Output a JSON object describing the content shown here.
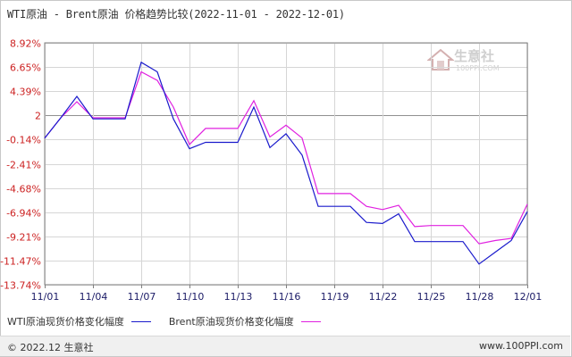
{
  "title": "WTI原油 - Brent原油 价格趋势比较(2022-11-01 - 2022-12-01)",
  "watermark": {
    "cn": "生意社",
    "en": "100PPI.COM"
  },
  "footer": {
    "left": "© 2022.12 生意社",
    "right": "www.100PPI.com"
  },
  "colors": {
    "wti": "#1a1acc",
    "brent": "#e020e0",
    "grid": "#d6d6d6",
    "axis": "#808080",
    "label": "#cc2222"
  },
  "chart_data": {
    "type": "line",
    "title": "WTI原油 - Brent原油 价格趋势比较(2022-11-01 - 2022-12-01)",
    "y_ticks": [
      "8.92%",
      "6.65%",
      "4.39%",
      "2",
      "-0.14%",
      "-2.41%",
      "-4.68%",
      "-6.94%",
      "-9.21%",
      "-11.47%",
      "-13.74%"
    ],
    "y_tick_values": [
      8.92,
      6.65,
      4.39,
      2.12,
      -0.14,
      -2.41,
      -4.68,
      -6.94,
      -9.21,
      -11.47,
      -13.74
    ],
    "ylim": [
      -13.74,
      8.92
    ],
    "x_ticks": [
      "11/01",
      "11/04",
      "11/07",
      "11/10",
      "11/13",
      "11/16",
      "11/19",
      "11/22",
      "11/25",
      "11/28",
      "12/01"
    ],
    "x": [
      "11/01",
      "11/02",
      "11/03",
      "11/04",
      "11/05",
      "11/06",
      "11/07",
      "11/08",
      "11/09",
      "11/10",
      "11/11",
      "11/12",
      "11/13",
      "11/14",
      "11/15",
      "11/16",
      "11/17",
      "11/18",
      "11/19",
      "11/20",
      "11/21",
      "11/22",
      "11/23",
      "11/24",
      "11/25",
      "11/26",
      "11/27",
      "11/28",
      "11/29",
      "11/30",
      "12/01"
    ],
    "grid": true,
    "legend_position": "bottom-left",
    "series": [
      {
        "name": "WTI原油现货价格变化幅度",
        "color": "#1a1acc",
        "values": [
          0.0,
          1.9,
          3.9,
          1.8,
          1.8,
          1.8,
          7.1,
          6.2,
          1.8,
          -1.0,
          -0.4,
          -0.4,
          -0.4,
          2.9,
          -0.9,
          0.4,
          -1.6,
          -6.4,
          -6.4,
          -6.4,
          -7.9,
          -8.0,
          -7.1,
          -9.7,
          -9.7,
          -9.7,
          -9.7,
          -11.8,
          -10.7,
          -9.6,
          -6.9
        ]
      },
      {
        "name": "Brent原油现货价格变化幅度",
        "color": "#e020e0",
        "values": [
          0.0,
          1.9,
          3.4,
          1.9,
          1.9,
          1.9,
          6.2,
          5.4,
          2.9,
          -0.6,
          0.9,
          0.9,
          0.9,
          3.5,
          0.1,
          1.2,
          0.0,
          -5.2,
          -5.2,
          -5.2,
          -6.4,
          -6.7,
          -6.3,
          -8.3,
          -8.2,
          -8.2,
          -8.2,
          -9.9,
          -9.6,
          -9.4,
          -6.2
        ]
      }
    ]
  }
}
